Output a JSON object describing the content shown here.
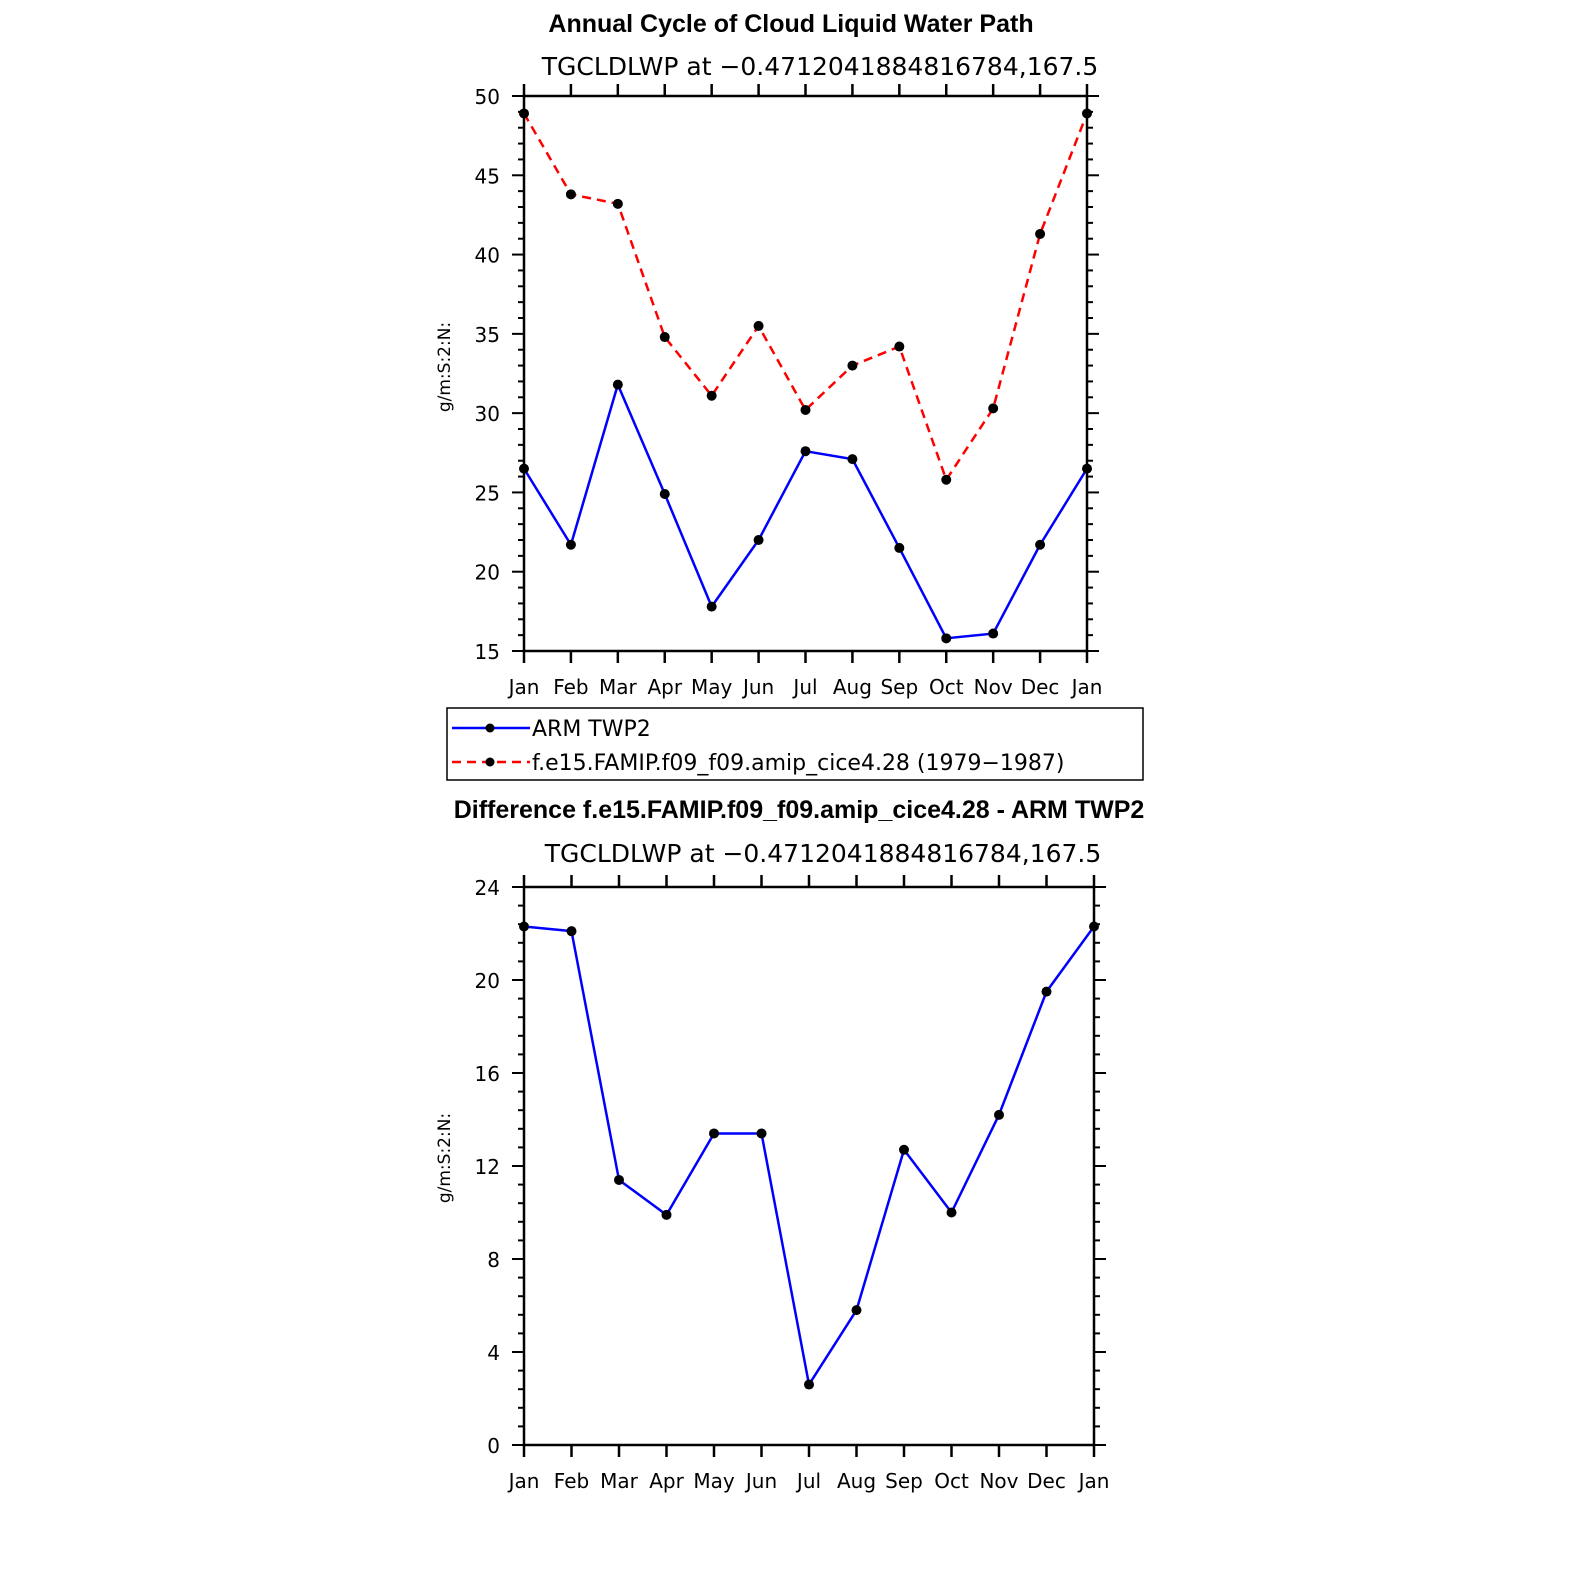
{
  "chart_data": [
    {
      "type": "line",
      "title": "Annual Cycle of Cloud Liquid Water Path",
      "subtitle": "TGCLDLWP  at  −0.4712041884816784,167.5",
      "ylabel": "g/m:S:2:N:",
      "xlabel": "",
      "categories": [
        "Jan",
        "Feb",
        "Mar",
        "Apr",
        "May",
        "Jun",
        "Jul",
        "Aug",
        "Sep",
        "Oct",
        "Nov",
        "Dec",
        "Jan"
      ],
      "ylim": [
        15,
        50
      ],
      "yticks": [
        "15",
        "20",
        "25",
        "30",
        "35",
        "40",
        "45",
        "50"
      ],
      "series": [
        {
          "name": "ARM TWP2",
          "color": "#0000ff",
          "style": "solid",
          "values": [
            26.5,
            21.7,
            31.8,
            24.9,
            17.8,
            22.0,
            27.6,
            27.1,
            21.5,
            15.8,
            16.1,
            21.7,
            26.5
          ]
        },
        {
          "name": "f.e15.FAMIP.f09_f09.amip_cice4.28 (1979−1987)",
          "color": "#ff0000",
          "style": "dashed",
          "values": [
            48.9,
            43.8,
            43.2,
            34.8,
            31.1,
            35.5,
            30.2,
            33.0,
            34.2,
            25.8,
            30.3,
            41.3,
            48.9
          ]
        }
      ]
    },
    {
      "type": "line",
      "title": "Difference f.e15.FAMIP.f09_f09.amip_cice4.28 - ARM TWP2",
      "subtitle": "TGCLDLWP  at  −0.4712041884816784,167.5",
      "ylabel": "g/m:S:2:N:",
      "xlabel": "",
      "categories": [
        "Jan",
        "Feb",
        "Mar",
        "Apr",
        "May",
        "Jun",
        "Jul",
        "Aug",
        "Sep",
        "Oct",
        "Nov",
        "Dec",
        "Jan"
      ],
      "ylim": [
        0,
        24
      ],
      "yticks": [
        "0",
        "4",
        "8",
        "12",
        "16",
        "20",
        "24"
      ],
      "series": [
        {
          "color": "#0000ff",
          "style": "solid",
          "values": [
            22.3,
            22.1,
            11.4,
            9.9,
            13.4,
            13.4,
            2.6,
            5.8,
            12.7,
            10.0,
            14.2,
            19.5,
            22.3
          ]
        }
      ]
    }
  ],
  "legend": {
    "entries": [
      {
        "label": "ARM TWP2",
        "color": "#0000ff",
        "style": "solid"
      },
      {
        "label": "f.e15.FAMIP.f09_f09.amip_cice4.28 (1979−1987)",
        "color": "#ff0000",
        "style": "dashed"
      }
    ]
  }
}
